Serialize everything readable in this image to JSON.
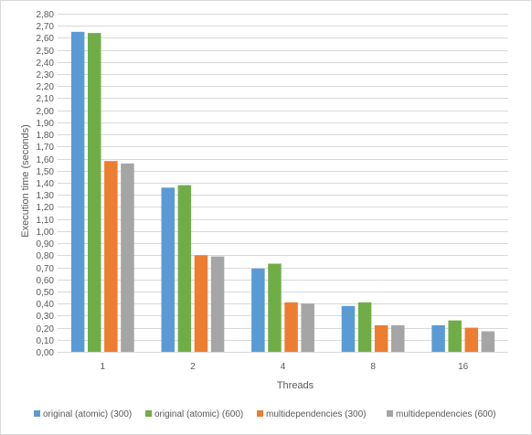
{
  "chart_data": {
    "type": "bar",
    "categories": [
      "1",
      "2",
      "4",
      "8",
      "16"
    ],
    "series": [
      {
        "name": "original (atomic) (300)",
        "color": "#5b9bd5",
        "values": [
          2.65,
          1.36,
          0.69,
          0.38,
          0.22
        ]
      },
      {
        "name": "original (atomic) (600)",
        "color": "#70ad47",
        "values": [
          2.64,
          1.38,
          0.73,
          0.41,
          0.26
        ]
      },
      {
        "name": "multidependencies (300)",
        "color": "#ed7d31",
        "values": [
          1.58,
          0.8,
          0.41,
          0.22,
          0.2
        ]
      },
      {
        "name": "multidependencies (600)",
        "color": "#a5a5a5",
        "values": [
          1.56,
          0.79,
          0.4,
          0.22,
          0.17
        ]
      }
    ],
    "title": "",
    "xlabel": "Threads",
    "ylabel": "Execution time (seconds)",
    "ylim": [
      0,
      2.8
    ],
    "ytick_step": 0.1,
    "decimal_separator": ",",
    "grid": true,
    "legend_position": "bottom"
  }
}
